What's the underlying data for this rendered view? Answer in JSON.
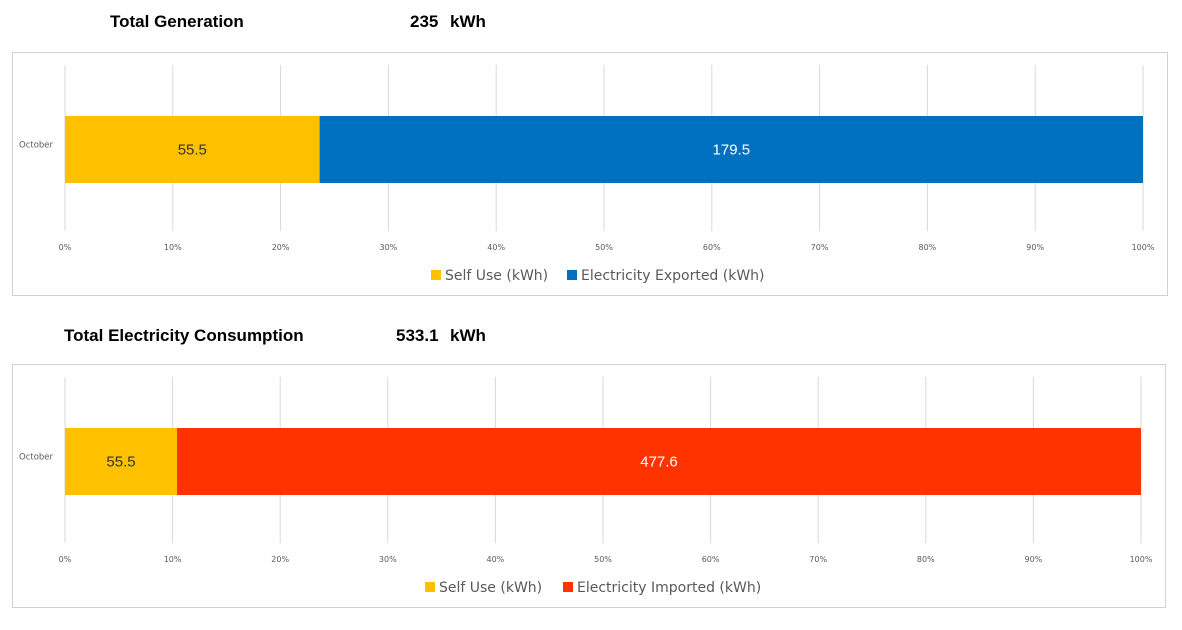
{
  "panels": [
    {
      "header": {
        "title": "Total Generation",
        "total_value": "235",
        "total_unit": "kWh"
      },
      "chart_data": {
        "type": "bar",
        "orientation": "horizontal",
        "stacking": "percent",
        "categories": [
          "October"
        ],
        "series": [
          {
            "name": "Self Use (kWh)",
            "values": [
              55.5
            ],
            "color": "#FFC000",
            "label_color": "#333333"
          },
          {
            "name": "Electricity Exported (kWh)",
            "values": [
              179.5
            ],
            "color": "#0070C0",
            "label_color": "#ffffff"
          }
        ],
        "xlim": [
          0,
          100
        ],
        "x_ticks": [
          "0%",
          "10%",
          "20%",
          "30%",
          "40%",
          "50%",
          "60%",
          "70%",
          "80%",
          "90%",
          "100%"
        ],
        "grid": true,
        "legend": "bottom"
      }
    },
    {
      "header": {
        "title": "Total Electricity Consumption",
        "total_value": "533.1",
        "total_unit": "kWh"
      },
      "chart_data": {
        "type": "bar",
        "orientation": "horizontal",
        "stacking": "percent",
        "categories": [
          "October"
        ],
        "series": [
          {
            "name": "Self Use (kWh)",
            "values": [
              55.5
            ],
            "color": "#FFC000",
            "label_color": "#333333"
          },
          {
            "name": "Electricity Imported (kWh)",
            "values": [
              477.6
            ],
            "color": "#FF3300",
            "label_color": "#ffffff"
          }
        ],
        "xlim": [
          0,
          100
        ],
        "x_ticks": [
          "0%",
          "10%",
          "20%",
          "30%",
          "40%",
          "50%",
          "60%",
          "70%",
          "80%",
          "90%",
          "100%"
        ],
        "grid": true,
        "legend": "bottom"
      }
    }
  ]
}
